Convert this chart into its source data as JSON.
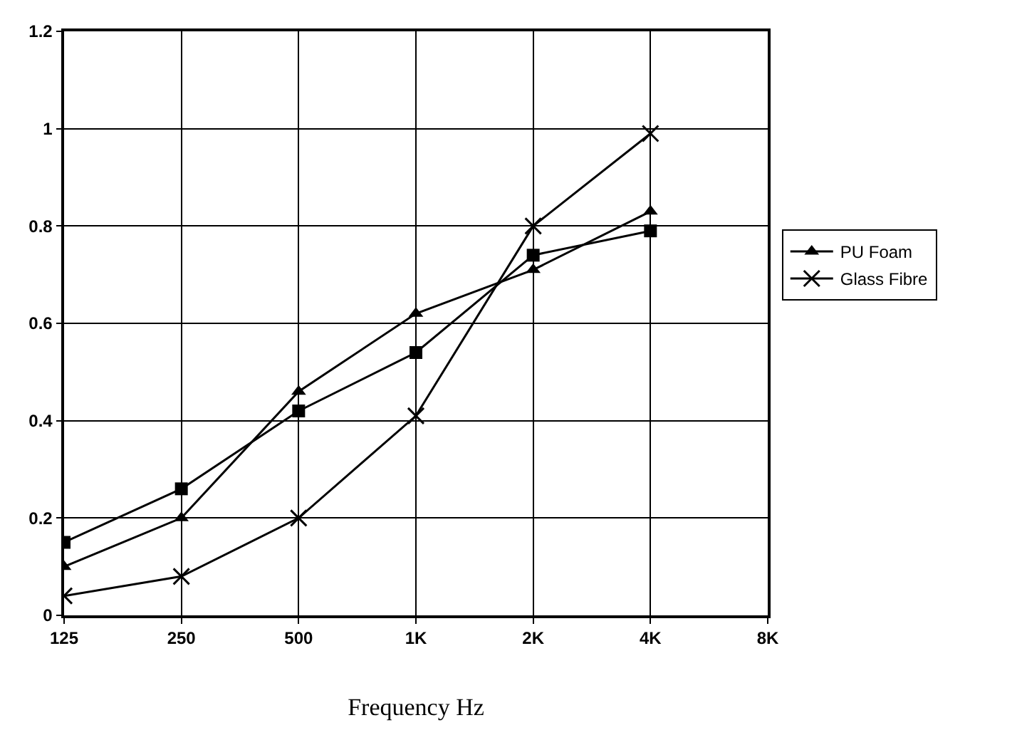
{
  "chart_data": {
    "type": "line",
    "xlabel": "Frequency Hz",
    "categories": [
      "125",
      "250",
      "500",
      "1K",
      "2K",
      "4K",
      "8K"
    ],
    "series": [
      {
        "name": "PU Foam",
        "color": "#000000",
        "marker": "triangle",
        "values": [
          0.1,
          0.2,
          0.46,
          0.62,
          0.71,
          0.83,
          null
        ]
      },
      {
        "color": "#000000",
        "marker": "square",
        "values": [
          0.15,
          0.26,
          0.42,
          0.54,
          0.74,
          0.79,
          null
        ]
      },
      {
        "name": "Glass Fibre",
        "color": "#000000",
        "marker": "cross",
        "values": [
          0.04,
          0.08,
          0.2,
          0.41,
          0.8,
          0.99,
          null
        ]
      }
    ],
    "ylim": [
      0,
      1.2
    ],
    "yticks": [
      0,
      0.2,
      0.4,
      0.6,
      0.8,
      1,
      1.2
    ],
    "grid": true,
    "legend": "right",
    "line_style": "solid"
  }
}
